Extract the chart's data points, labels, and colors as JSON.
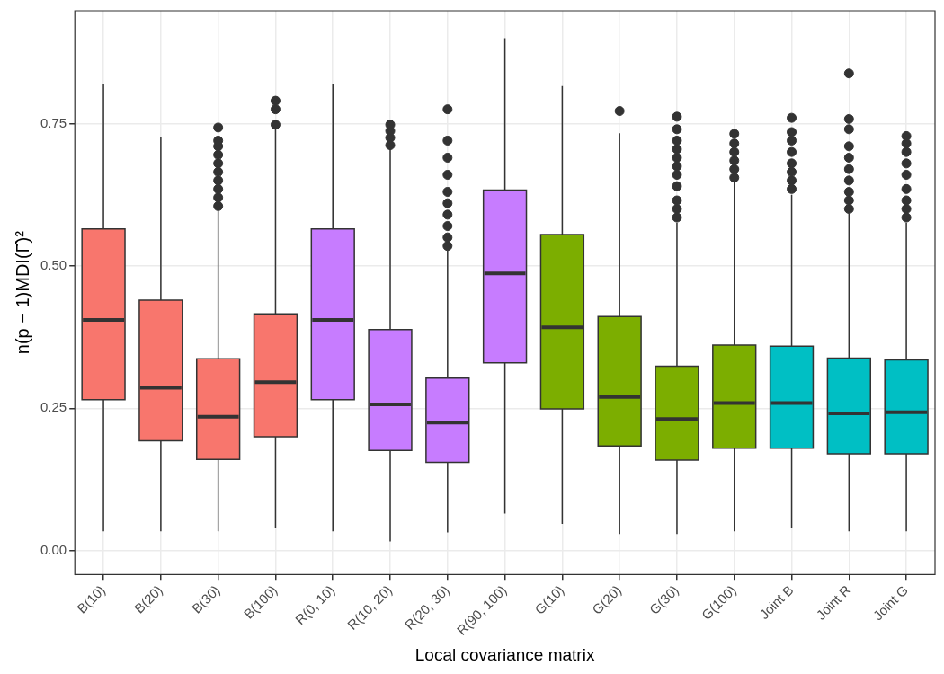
{
  "chart_data": {
    "type": "box",
    "xlabel": "Local covariance matrix",
    "ylabel": "n(p − 1)MDI(Γ̂)²",
    "categories": [
      "B(10)",
      "B(20)",
      "B(30)",
      "B(100)",
      "R(0, 10)",
      "R(10, 20)",
      "R(20, 30)",
      "R(90, 100)",
      "G(10)",
      "G(20)",
      "G(30)",
      "G(100)",
      "Joint B",
      "Joint R",
      "Joint G"
    ],
    "colors": [
      "#f8766d",
      "#f8766d",
      "#f8766d",
      "#f8766d",
      "#c77cff",
      "#c77cff",
      "#c77cff",
      "#c77cff",
      "#7cae00",
      "#7cae00",
      "#7cae00",
      "#7cae00",
      "#00bfc4",
      "#00bfc4",
      "#00bfc4"
    ],
    "boxes": [
      {
        "low": 0.034,
        "q1": 0.265,
        "median": 0.405,
        "q3": 0.565,
        "high": 0.819
      },
      {
        "low": 0.034,
        "q1": 0.193,
        "median": 0.286,
        "q3": 0.44,
        "high": 0.727
      },
      {
        "low": 0.034,
        "q1": 0.16,
        "median": 0.235,
        "q3": 0.337,
        "high": 0.597,
        "outliers": [
          0.605,
          0.62,
          0.635,
          0.65,
          0.665,
          0.68,
          0.695,
          0.71,
          0.72,
          0.743
        ]
      },
      {
        "low": 0.039,
        "q1": 0.2,
        "median": 0.296,
        "q3": 0.416,
        "high": 0.74,
        "outliers": [
          0.748,
          0.775,
          0.79
        ]
      },
      {
        "low": 0.034,
        "q1": 0.265,
        "median": 0.405,
        "q3": 0.565,
        "high": 0.819
      },
      {
        "low": 0.016,
        "q1": 0.176,
        "median": 0.257,
        "q3": 0.388,
        "high": 0.705,
        "outliers": [
          0.712,
          0.725,
          0.737,
          0.748
        ]
      },
      {
        "low": 0.032,
        "q1": 0.155,
        "median": 0.225,
        "q3": 0.303,
        "high": 0.527,
        "outliers": [
          0.535,
          0.55,
          0.57,
          0.59,
          0.61,
          0.63,
          0.66,
          0.69,
          0.72,
          0.775
        ]
      },
      {
        "low": 0.065,
        "q1": 0.33,
        "median": 0.487,
        "q3": 0.633,
        "high": 0.9
      },
      {
        "low": 0.047,
        "q1": 0.249,
        "median": 0.392,
        "q3": 0.555,
        "high": 0.816
      },
      {
        "low": 0.029,
        "q1": 0.184,
        "median": 0.27,
        "q3": 0.411,
        "high": 0.733,
        "outliers": [
          0.772
        ]
      },
      {
        "low": 0.029,
        "q1": 0.159,
        "median": 0.231,
        "q3": 0.324,
        "high": 0.576,
        "outliers": [
          0.585,
          0.6,
          0.615,
          0.64,
          0.66,
          0.675,
          0.69,
          0.705,
          0.72,
          0.74,
          0.762
        ]
      },
      {
        "low": 0.034,
        "q1": 0.18,
        "median": 0.259,
        "q3": 0.361,
        "high": 0.649,
        "outliers": [
          0.655,
          0.67,
          0.685,
          0.7,
          0.715,
          0.732
        ]
      },
      {
        "low": 0.04,
        "q1": 0.18,
        "median": 0.259,
        "q3": 0.359,
        "high": 0.625,
        "outliers": [
          0.635,
          0.65,
          0.665,
          0.68,
          0.7,
          0.72,
          0.735,
          0.76
        ]
      },
      {
        "low": 0.034,
        "q1": 0.17,
        "median": 0.241,
        "q3": 0.338,
        "high": 0.592,
        "outliers": [
          0.6,
          0.615,
          0.63,
          0.65,
          0.67,
          0.69,
          0.71,
          0.74,
          0.758,
          0.838
        ]
      },
      {
        "low": 0.034,
        "q1": 0.17,
        "median": 0.243,
        "q3": 0.335,
        "high": 0.576,
        "outliers": [
          0.585,
          0.6,
          0.615,
          0.635,
          0.66,
          0.68,
          0.7,
          0.715,
          0.728
        ]
      }
    ],
    "ylim": [
      -0.042,
      0.948
    ],
    "yticks": [
      {
        "value": 0,
        "label": "0.00"
      },
      {
        "value": 0.25,
        "label": "0.25"
      },
      {
        "value": 0.5,
        "label": "0.50"
      },
      {
        "value": 0.75,
        "label": "0.75"
      }
    ],
    "grid": true,
    "legend": false
  }
}
